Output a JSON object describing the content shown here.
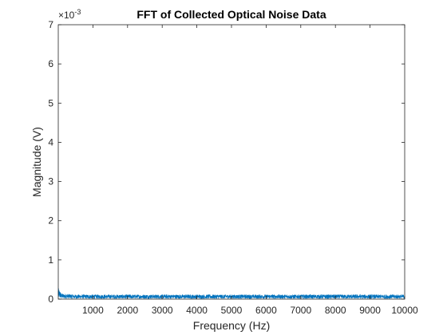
{
  "chart_data": {
    "type": "line",
    "title": "FFT of Collected Optical Noise Data",
    "xlabel": "Frequency (Hz)",
    "ylabel": "Magnitude (V)",
    "xlim": [
      0,
      10000
    ],
    "ylim": [
      0,
      0.007
    ],
    "x_ticks": [
      1000,
      2000,
      3000,
      4000,
      5000,
      6000,
      7000,
      8000,
      9000,
      10000
    ],
    "x_tick_labels": [
      "1000",
      "2000",
      "3000",
      "4000",
      "5000",
      "6000",
      "7000",
      "8000",
      "9000",
      "10000"
    ],
    "y_ticks": [
      0,
      0.001,
      0.002,
      0.003,
      0.004,
      0.005,
      0.006,
      0.007
    ],
    "y_tick_labels": [
      "0",
      "1",
      "2",
      "3",
      "4",
      "5",
      "6",
      "7"
    ],
    "y_multiplier": {
      "base": "×10",
      "exponent": "-3"
    },
    "grid": false,
    "box": true,
    "line_color": "#0072BD",
    "series": [
      {
        "x": [
          0,
          50,
          100,
          500,
          1000,
          2000,
          3000,
          4000,
          5000,
          6000,
          7000,
          8000,
          9000,
          10000
        ],
        "values": [
          0.0002,
          0.00014,
          0.0001,
          8e-05,
          8e-05,
          8e-05,
          8e-05,
          8e-05,
          8e-05,
          8e-05,
          8e-05,
          8e-05,
          8e-05,
          8e-05
        ],
        "noise_floor": [
          0.0,
          0.00012
        ]
      }
    ]
  }
}
